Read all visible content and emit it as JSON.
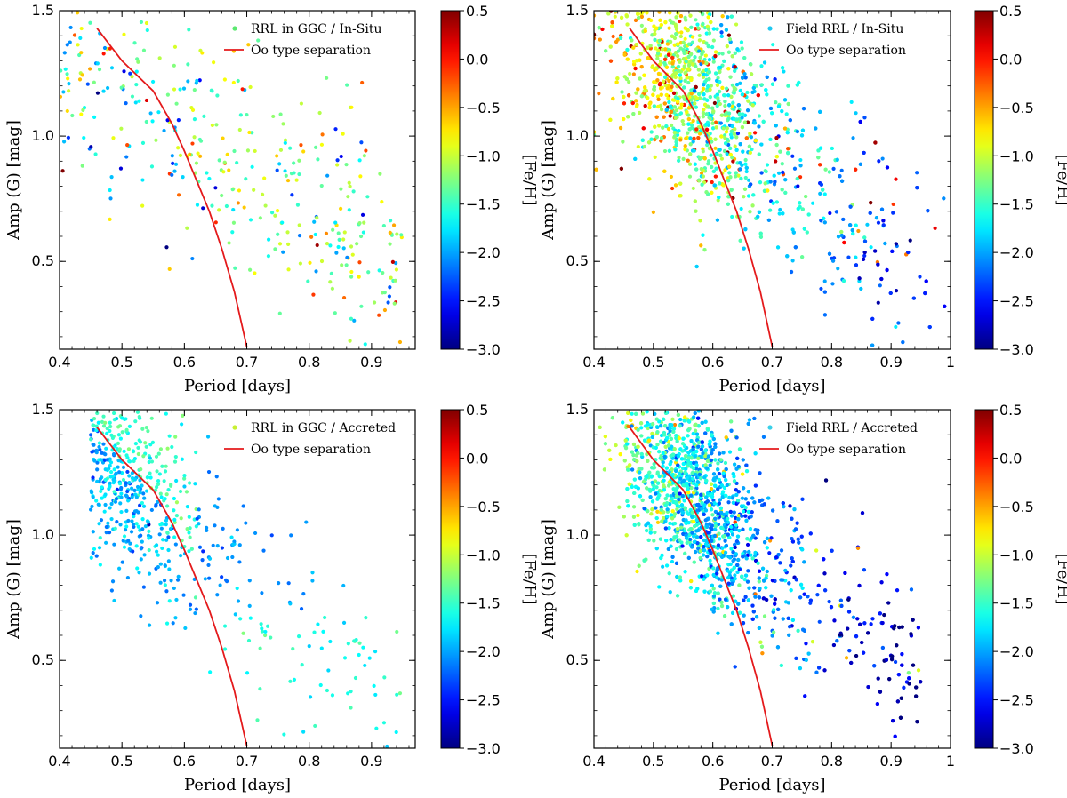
{
  "colorbar": {
    "label": "[Fe/H]",
    "range": [
      -3.0,
      0.5
    ],
    "ticks": [
      0.5,
      0.0,
      -0.5,
      -1.0,
      -1.5,
      -2.0,
      -2.5,
      -3.0
    ],
    "tick_labels": [
      "0.5",
      "0.0",
      "−0.5",
      "−1.0",
      "−1.5",
      "−2.0",
      "−2.5",
      "−3.0"
    ],
    "colormap": "jet"
  },
  "separation_line_color": "#e41a1c",
  "chart_data": [
    {
      "id": "ggc-insitu",
      "type": "scatter",
      "xlabel": "Period [days]",
      "ylabel": "Amp (G) [mag]",
      "xlim": [
        0.4,
        0.97
      ],
      "ylim": [
        0.15,
        1.5
      ],
      "x_ticks": [
        0.4,
        0.5,
        0.6,
        0.7,
        0.8,
        0.9
      ],
      "x_tick_labels": [
        "0.4",
        "0.5",
        "0.6",
        "0.7",
        "0.8",
        "0.9"
      ],
      "y_ticks": [
        0.5,
        1.0,
        1.5
      ],
      "y_tick_labels": [
        "0.5",
        "1.0",
        "1.5"
      ],
      "legend": {
        "placement": "top-right",
        "scatter_label": "RRL in GGC / In-Situ",
        "line_label": "Oo type separation"
      },
      "population": "insitu-ggc",
      "approx_points": 380,
      "oo_separation_line": {
        "x": [
          0.46,
          0.5,
          0.55,
          0.58,
          0.6,
          0.62,
          0.64,
          0.66,
          0.68,
          0.7
        ],
        "y": [
          1.43,
          1.3,
          1.18,
          1.05,
          0.94,
          0.82,
          0.7,
          0.55,
          0.38,
          0.16
        ]
      }
    },
    {
      "id": "field-insitu",
      "type": "scatter",
      "xlabel": "Period [days]",
      "ylabel": "Amp (G) [mag]",
      "xlim": [
        0.4,
        1.0
      ],
      "ylim": [
        0.15,
        1.5
      ],
      "x_ticks": [
        0.4,
        0.5,
        0.6,
        0.7,
        0.8,
        0.9,
        1.0
      ],
      "x_tick_labels": [
        "0.4",
        "0.5",
        "0.6",
        "0.7",
        "0.8",
        "0.9",
        "1"
      ],
      "y_ticks": [
        0.5,
        1.0,
        1.5
      ],
      "y_tick_labels": [
        "0.5",
        "1.0",
        "1.5"
      ],
      "legend": {
        "placement": "top-right",
        "scatter_label": "Field RRL / In-Situ",
        "line_label": "Oo type separation"
      },
      "population": "insitu-field",
      "approx_points": 2600,
      "oo_separation_line": {
        "x": [
          0.46,
          0.5,
          0.55,
          0.58,
          0.6,
          0.62,
          0.64,
          0.66,
          0.68,
          0.7
        ],
        "y": [
          1.43,
          1.3,
          1.18,
          1.05,
          0.94,
          0.82,
          0.7,
          0.55,
          0.38,
          0.16
        ]
      }
    },
    {
      "id": "ggc-accreted",
      "type": "scatter",
      "xlabel": "Period [days]",
      "ylabel": "Amp (G) [mag]",
      "xlim": [
        0.4,
        0.97
      ],
      "ylim": [
        0.15,
        1.5
      ],
      "x_ticks": [
        0.4,
        0.5,
        0.6,
        0.7,
        0.8,
        0.9
      ],
      "x_tick_labels": [
        "0.4",
        "0.5",
        "0.6",
        "0.7",
        "0.8",
        "0.9"
      ],
      "y_ticks": [
        0.5,
        1.0,
        1.5
      ],
      "y_tick_labels": [
        "0.5",
        "1.0",
        "1.5"
      ],
      "legend": {
        "placement": "top-right",
        "scatter_label": "RRL in GGC / Accreted",
        "line_label": "Oo type separation"
      },
      "population": "accreted-ggc",
      "approx_points": 600,
      "oo_separation_line": {
        "x": [
          0.46,
          0.5,
          0.55,
          0.58,
          0.6,
          0.62,
          0.64,
          0.66,
          0.68,
          0.7
        ],
        "y": [
          1.43,
          1.3,
          1.18,
          1.05,
          0.94,
          0.82,
          0.7,
          0.55,
          0.38,
          0.16
        ]
      }
    },
    {
      "id": "field-accreted",
      "type": "scatter",
      "xlabel": "Period [days]",
      "ylabel": "Amp (G) [mag]",
      "xlim": [
        0.4,
        1.0
      ],
      "ylim": [
        0.15,
        1.5
      ],
      "x_ticks": [
        0.4,
        0.5,
        0.6,
        0.7,
        0.8,
        0.9,
        1.0
      ],
      "x_tick_labels": [
        "0.4",
        "0.5",
        "0.6",
        "0.7",
        "0.8",
        "0.9",
        "1"
      ],
      "y_ticks": [
        0.5,
        1.0,
        1.5
      ],
      "y_tick_labels": [
        "0.5",
        "1.0",
        "1.5"
      ],
      "legend": {
        "placement": "top-right",
        "scatter_label": "Field RRL / Accreted",
        "line_label": "Oo type separation"
      },
      "population": "accreted-field",
      "approx_points": 3200,
      "oo_separation_line": {
        "x": [
          0.46,
          0.5,
          0.55,
          0.58,
          0.6,
          0.62,
          0.64,
          0.66,
          0.68,
          0.7
        ],
        "y": [
          1.43,
          1.3,
          1.18,
          1.05,
          0.94,
          0.82,
          0.7,
          0.55,
          0.38,
          0.16
        ]
      }
    }
  ]
}
